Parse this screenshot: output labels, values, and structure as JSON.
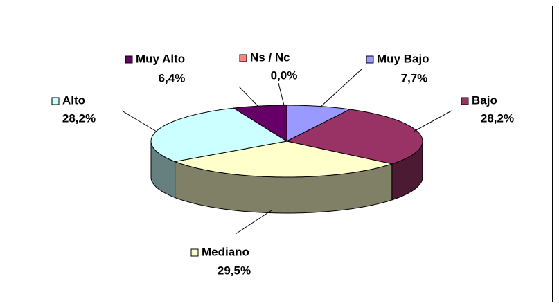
{
  "chart_data": {
    "type": "pie3d",
    "categories": [
      "Muy Bajo",
      "Bajo",
      "Mediano",
      "Alto",
      "Muy Alto",
      "Ns / Nc"
    ],
    "values": [
      7.7,
      28.2,
      29.5,
      28.2,
      6.4,
      0.0
    ],
    "value_labels": [
      "7,7%",
      "28,2%",
      "29,5%",
      "28,2%",
      "6,4%",
      "0,0%"
    ],
    "colors": [
      "#9999ff",
      "#993366",
      "#ffffcc",
      "#ccffff",
      "#660066",
      "#ff8080"
    ]
  }
}
